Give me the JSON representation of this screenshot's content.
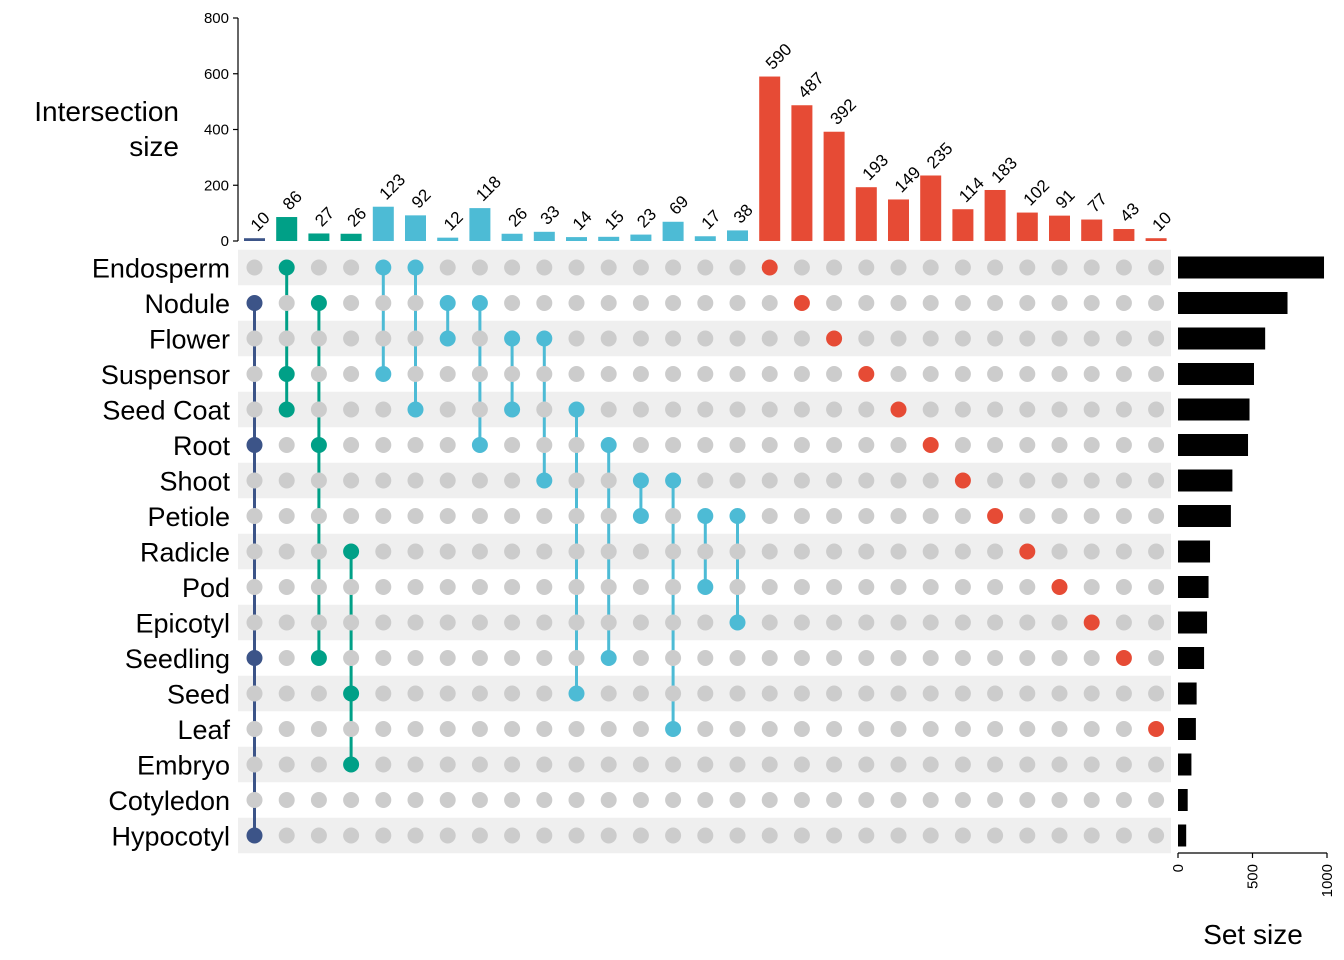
{
  "chart_data": {
    "type": "upset",
    "intersection_axis": {
      "title_lines": [
        "Intersection",
        "size"
      ],
      "ticks": [
        0,
        200,
        400,
        600,
        800
      ],
      "ylim": [
        0,
        800
      ]
    },
    "set_size_axis": {
      "title": "Set size",
      "ticks": [
        0,
        500,
        1000
      ],
      "xlim": [
        0,
        1000
      ]
    },
    "sets": [
      "Endosperm",
      "Nodule",
      "Flower",
      "Suspensor",
      "Seed Coat",
      "Root",
      "Shoot",
      "Petiole",
      "Radicle",
      "Pod",
      "Epicotyl",
      "Seedling",
      "Seed",
      "Leaf",
      "Embryo",
      "Cotyledon",
      "Hypocotyl"
    ],
    "set_sizes": [
      980,
      735,
      585,
      510,
      480,
      470,
      365,
      355,
      215,
      205,
      195,
      175,
      125,
      120,
      90,
      65,
      55
    ],
    "colors": {
      "group1": "#3C5488",
      "group2": "#00A087",
      "group3": "#4DBBD5",
      "group4": "#E64B35",
      "inactive_dot": "#CCCCCC",
      "stripe": "#EFEFEF",
      "set_bar": "#000000"
    },
    "intersections": [
      {
        "size": 10,
        "sets": [
          "Nodule",
          "Root",
          "Seedling",
          "Hypocotyl"
        ],
        "group": "group1"
      },
      {
        "size": 86,
        "sets": [
          "Endosperm",
          "Suspensor",
          "Seed Coat"
        ],
        "group": "group2"
      },
      {
        "size": 27,
        "sets": [
          "Nodule",
          "Root",
          "Seedling"
        ],
        "group": "group2"
      },
      {
        "size": 26,
        "sets": [
          "Radicle",
          "Seed",
          "Embryo"
        ],
        "group": "group2"
      },
      {
        "size": 123,
        "sets": [
          "Endosperm",
          "Suspensor"
        ],
        "group": "group3"
      },
      {
        "size": 92,
        "sets": [
          "Endosperm",
          "Seed Coat"
        ],
        "group": "group3"
      },
      {
        "size": 12,
        "sets": [
          "Nodule",
          "Flower"
        ],
        "group": "group3"
      },
      {
        "size": 118,
        "sets": [
          "Nodule",
          "Root"
        ],
        "group": "group3"
      },
      {
        "size": 26,
        "sets": [
          "Flower",
          "Seed Coat"
        ],
        "group": "group3"
      },
      {
        "size": 33,
        "sets": [
          "Flower",
          "Shoot"
        ],
        "group": "group3"
      },
      {
        "size": 14,
        "sets": [
          "Seed Coat",
          "Seed"
        ],
        "group": "group3"
      },
      {
        "size": 15,
        "sets": [
          "Root",
          "Seedling"
        ],
        "group": "group3"
      },
      {
        "size": 23,
        "sets": [
          "Shoot",
          "Petiole"
        ],
        "group": "group3"
      },
      {
        "size": 69,
        "sets": [
          "Shoot",
          "Leaf"
        ],
        "group": "group3"
      },
      {
        "size": 17,
        "sets": [
          "Petiole",
          "Pod"
        ],
        "group": "group3"
      },
      {
        "size": 38,
        "sets": [
          "Petiole",
          "Epicotyl"
        ],
        "group": "group3"
      },
      {
        "size": 590,
        "sets": [
          "Endosperm"
        ],
        "group": "group4"
      },
      {
        "size": 487,
        "sets": [
          "Nodule"
        ],
        "group": "group4"
      },
      {
        "size": 392,
        "sets": [
          "Flower"
        ],
        "group": "group4"
      },
      {
        "size": 193,
        "sets": [
          "Suspensor"
        ],
        "group": "group4"
      },
      {
        "size": 149,
        "sets": [
          "Seed Coat"
        ],
        "group": "group4"
      },
      {
        "size": 235,
        "sets": [
          "Root"
        ],
        "group": "group4"
      },
      {
        "size": 114,
        "sets": [
          "Shoot"
        ],
        "group": "group4"
      },
      {
        "size": 183,
        "sets": [
          "Petiole"
        ],
        "group": "group4"
      },
      {
        "size": 102,
        "sets": [
          "Radicle"
        ],
        "group": "group4"
      },
      {
        "size": 91,
        "sets": [
          "Pod"
        ],
        "group": "group4"
      },
      {
        "size": 77,
        "sets": [
          "Epicotyl"
        ],
        "group": "group4"
      },
      {
        "size": 43,
        "sets": [
          "Seedling"
        ],
        "group": "group4"
      },
      {
        "size": 10,
        "sets": [
          "Leaf"
        ],
        "group": "group4"
      }
    ]
  }
}
